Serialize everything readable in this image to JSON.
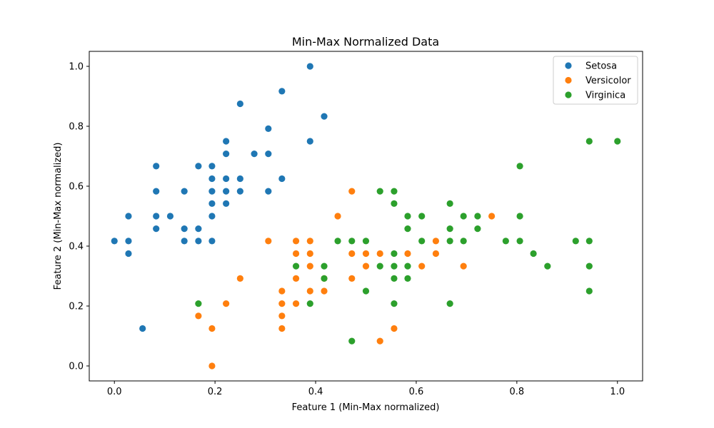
{
  "chart_data": {
    "type": "scatter",
    "title": "Min-Max Normalized Data",
    "xlabel": "Feature 1 (Min-Max normalized)",
    "ylabel": "Feature 2 (Min-Max normalized)",
    "xlim": [
      -0.05,
      1.05
    ],
    "ylim": [
      -0.05,
      1.05
    ],
    "xticks": [
      "0.0",
      "0.2",
      "0.4",
      "0.6",
      "0.8",
      "1.0"
    ],
    "yticks": [
      "0.0",
      "0.2",
      "0.4",
      "0.6",
      "0.8",
      "1.0"
    ],
    "grid": false,
    "legend_position": "top-right",
    "series": [
      {
        "name": "Setosa",
        "color": "#1f77b4",
        "points": [
          [
            0.0,
            0.417
          ],
          [
            0.028,
            0.5
          ],
          [
            0.028,
            0.417
          ],
          [
            0.028,
            0.375
          ],
          [
            0.056,
            0.125
          ],
          [
            0.083,
            0.667
          ],
          [
            0.083,
            0.583
          ],
          [
            0.083,
            0.5
          ],
          [
            0.083,
            0.458
          ],
          [
            0.111,
            0.5
          ],
          [
            0.139,
            0.583
          ],
          [
            0.139,
            0.458
          ],
          [
            0.139,
            0.417
          ],
          [
            0.167,
            0.667
          ],
          [
            0.167,
            0.458
          ],
          [
            0.167,
            0.417
          ],
          [
            0.194,
            0.667
          ],
          [
            0.194,
            0.625
          ],
          [
            0.194,
            0.583
          ],
          [
            0.194,
            0.542
          ],
          [
            0.194,
            0.5
          ],
          [
            0.194,
            0.417
          ],
          [
            0.222,
            0.75
          ],
          [
            0.222,
            0.708
          ],
          [
            0.222,
            0.625
          ],
          [
            0.222,
            0.583
          ],
          [
            0.222,
            0.542
          ],
          [
            0.25,
            0.875
          ],
          [
            0.25,
            0.625
          ],
          [
            0.25,
            0.583
          ],
          [
            0.278,
            0.708
          ],
          [
            0.306,
            0.792
          ],
          [
            0.306,
            0.708
          ],
          [
            0.306,
            0.583
          ],
          [
            0.333,
            0.917
          ],
          [
            0.333,
            0.625
          ],
          [
            0.389,
            1.0
          ],
          [
            0.389,
            0.75
          ],
          [
            0.417,
            0.833
          ]
        ]
      },
      {
        "name": "Versicolor",
        "color": "#ff7f0e",
        "points": [
          [
            0.167,
            0.167
          ],
          [
            0.194,
            0.125
          ],
          [
            0.194,
            0.0
          ],
          [
            0.222,
            0.208
          ],
          [
            0.25,
            0.292
          ],
          [
            0.306,
            0.417
          ],
          [
            0.333,
            0.25
          ],
          [
            0.333,
            0.208
          ],
          [
            0.333,
            0.167
          ],
          [
            0.333,
            0.125
          ],
          [
            0.361,
            0.417
          ],
          [
            0.361,
            0.375
          ],
          [
            0.361,
            0.292
          ],
          [
            0.361,
            0.208
          ],
          [
            0.389,
            0.417
          ],
          [
            0.389,
            0.375
          ],
          [
            0.389,
            0.333
          ],
          [
            0.389,
            0.25
          ],
          [
            0.417,
            0.25
          ],
          [
            0.417,
            0.292
          ],
          [
            0.444,
            0.5
          ],
          [
            0.472,
            0.583
          ],
          [
            0.472,
            0.375
          ],
          [
            0.472,
            0.292
          ],
          [
            0.5,
            0.375
          ],
          [
            0.5,
            0.333
          ],
          [
            0.528,
            0.375
          ],
          [
            0.528,
            0.083
          ],
          [
            0.556,
            0.125
          ],
          [
            0.583,
            0.375
          ],
          [
            0.611,
            0.333
          ],
          [
            0.639,
            0.417
          ],
          [
            0.639,
            0.375
          ],
          [
            0.694,
            0.333
          ],
          [
            0.75,
            0.5
          ]
        ]
      },
      {
        "name": "Virginica",
        "color": "#2ca02c",
        "points": [
          [
            0.167,
            0.208
          ],
          [
            0.361,
            0.333
          ],
          [
            0.389,
            0.208
          ],
          [
            0.417,
            0.333
          ],
          [
            0.417,
            0.292
          ],
          [
            0.444,
            0.417
          ],
          [
            0.472,
            0.417
          ],
          [
            0.472,
            0.083
          ],
          [
            0.5,
            0.417
          ],
          [
            0.5,
            0.25
          ],
          [
            0.528,
            0.583
          ],
          [
            0.528,
            0.333
          ],
          [
            0.556,
            0.583
          ],
          [
            0.556,
            0.542
          ],
          [
            0.556,
            0.375
          ],
          [
            0.556,
            0.333
          ],
          [
            0.556,
            0.292
          ],
          [
            0.556,
            0.208
          ],
          [
            0.583,
            0.5
          ],
          [
            0.583,
            0.458
          ],
          [
            0.583,
            0.333
          ],
          [
            0.583,
            0.292
          ],
          [
            0.611,
            0.5
          ],
          [
            0.611,
            0.417
          ],
          [
            0.667,
            0.542
          ],
          [
            0.667,
            0.458
          ],
          [
            0.667,
            0.417
          ],
          [
            0.667,
            0.208
          ],
          [
            0.694,
            0.5
          ],
          [
            0.694,
            0.417
          ],
          [
            0.722,
            0.5
          ],
          [
            0.722,
            0.458
          ],
          [
            0.778,
            0.417
          ],
          [
            0.806,
            0.667
          ],
          [
            0.806,
            0.5
          ],
          [
            0.806,
            0.417
          ],
          [
            0.833,
            0.375
          ],
          [
            0.861,
            0.333
          ],
          [
            0.917,
            0.417
          ],
          [
            0.944,
            0.75
          ],
          [
            0.944,
            0.417
          ],
          [
            0.944,
            0.333
          ],
          [
            0.944,
            0.25
          ],
          [
            1.0,
            0.75
          ]
        ]
      }
    ]
  }
}
